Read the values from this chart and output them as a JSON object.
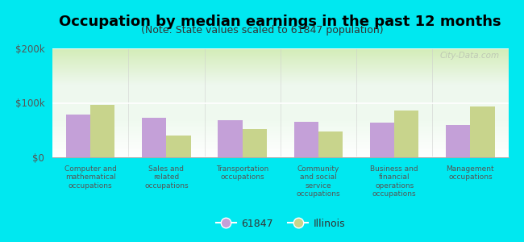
{
  "title": "Occupation by median earnings in the past 12 months",
  "subtitle": "(Note: State values scaled to 61847 population)",
  "categories": [
    "Computer and\nmathematical\noccupations",
    "Sales and\nrelated\noccupations",
    "Transportation\noccupations",
    "Community\nand social\nservice\noccupations",
    "Business and\nfinancial\noperations\noccupations",
    "Management\noccupations"
  ],
  "values_61847": [
    78000,
    72000,
    68000,
    65000,
    63000,
    60000
  ],
  "values_illinois": [
    97000,
    40000,
    52000,
    47000,
    86000,
    93000
  ],
  "color_61847": "#c4a0d8",
  "color_illinois": "#c8d48c",
  "background_color": "#00e8f0",
  "ylim": [
    0,
    200000
  ],
  "yticks": [
    0,
    100000,
    200000
  ],
  "ytick_labels": [
    "$0",
    "$100k",
    "$200k"
  ],
  "legend_label_61847": "61847",
  "legend_label_illinois": "Illinois",
  "title_fontsize": 13,
  "subtitle_fontsize": 9,
  "watermark": "City-Data.com"
}
